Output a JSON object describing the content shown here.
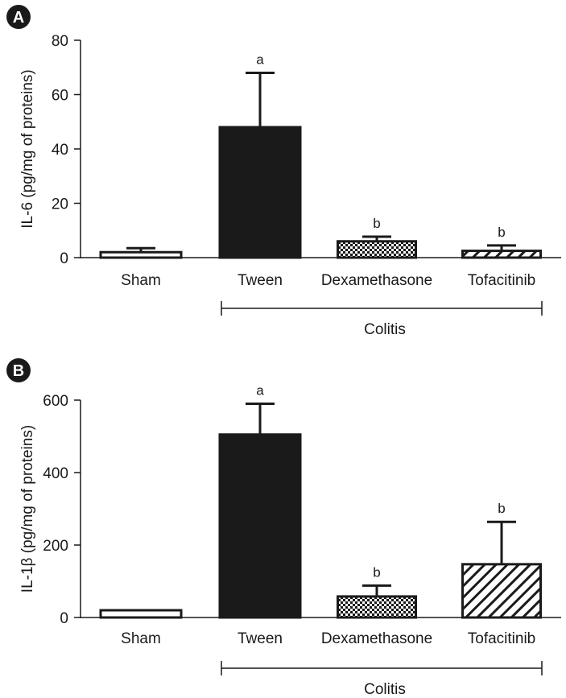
{
  "chart_data": [
    {
      "panel": "A",
      "type": "bar",
      "ylabel": "IL-6 (pg/mg of proteins)",
      "ylim": [
        0,
        80
      ],
      "yticks": [
        "0",
        "20",
        "40",
        "60",
        "80"
      ],
      "categories": [
        "Sham",
        "Tween",
        "Dexamethasone",
        "Tofacitinib"
      ],
      "values": [
        2,
        48,
        6,
        2.5
      ],
      "errors": [
        1.5,
        20,
        1.7,
        2
      ],
      "significance": [
        "",
        "a",
        "b",
        "b"
      ],
      "patterns": [
        "white",
        "black",
        "checker",
        "hatch"
      ],
      "group_label": "Colitis"
    },
    {
      "panel": "B",
      "type": "bar",
      "ylabel": "IL-1β (pg/mg of proteins)",
      "ylim": [
        0,
        600
      ],
      "yticks": [
        "0",
        "200",
        "400",
        "600"
      ],
      "categories": [
        "Sham",
        "Tween",
        "Dexamethasone",
        "Tofacitinib"
      ],
      "values": [
        20,
        505,
        58,
        147
      ],
      "errors": [
        0,
        85,
        30,
        117
      ],
      "significance": [
        "",
        "a",
        "b",
        "b"
      ],
      "patterns": [
        "white",
        "black",
        "checker",
        "hatch"
      ],
      "group_label": "Colitis"
    }
  ]
}
